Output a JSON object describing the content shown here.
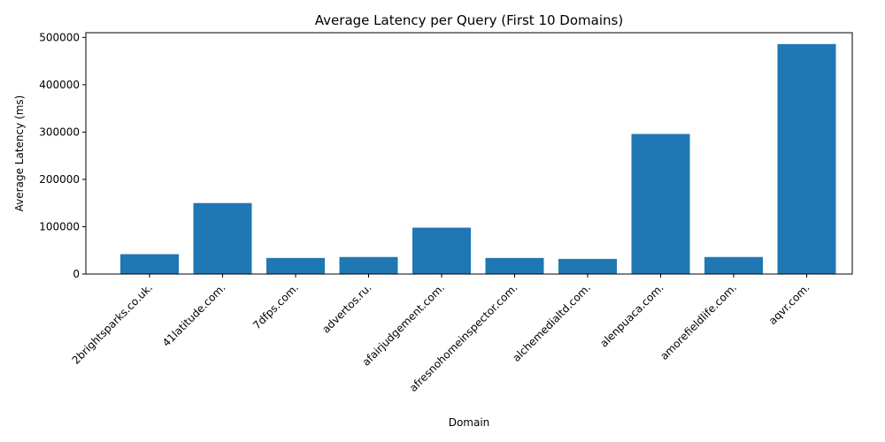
{
  "chart_data": {
    "type": "bar",
    "title": "Average Latency per Query (First 10 Domains)",
    "xlabel": "Domain",
    "ylabel": "Average Latency (ms)",
    "categories": [
      "2brightsparks.co.uk.",
      "41latitude.com.",
      "7dfps.com.",
      "advertos.ru.",
      "afairjudgement.com.",
      "afresnohomeinspector.com.",
      "alchemedialtd.com.",
      "alenpuaca.com.",
      "amorefieldlife.com.",
      "aqvr.com."
    ],
    "values": [
      42000,
      150000,
      34000,
      36000,
      98000,
      34000,
      32000,
      296000,
      36000,
      486000
    ],
    "ylim": [
      0,
      510000
    ],
    "yticks": [
      0,
      100000,
      200000,
      300000,
      400000,
      500000
    ],
    "bar_color": "#1f77b4",
    "grid": false,
    "legend": "none"
  }
}
